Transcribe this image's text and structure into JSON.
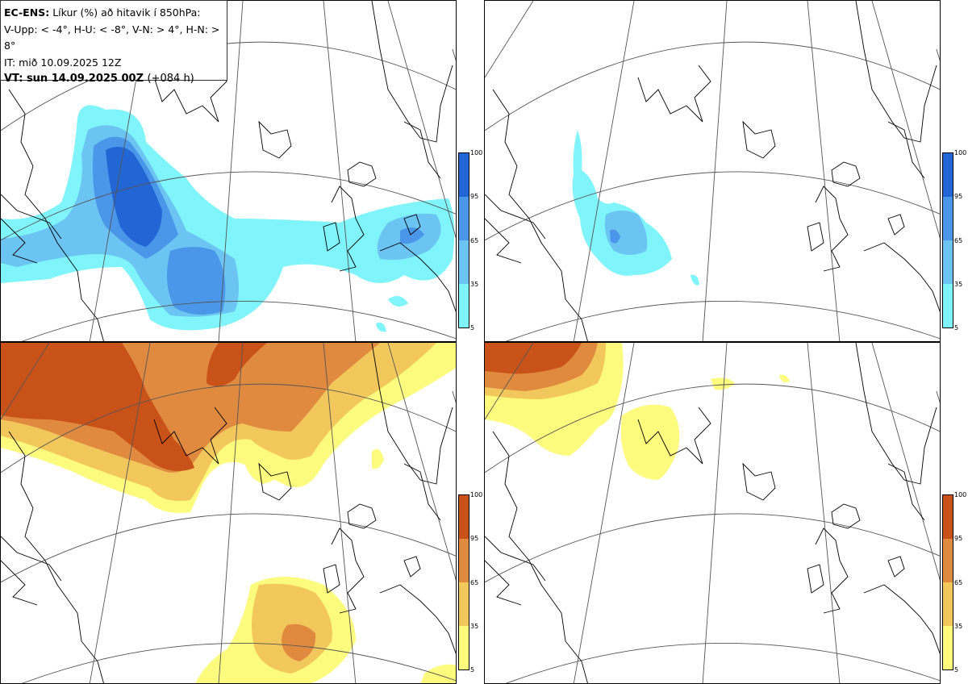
{
  "header": {
    "model": "EC-ENS:",
    "title": "Líkur (%) að hitavik í 850hPa:",
    "criteria": "V-Upp: < -4°, H-U: < -8°, V-N: > 4°, H-N: > 8°",
    "init_time": "IT: mið 10.09.2025 12Z",
    "valid_label": "VT: sun 14.09.2025 00Z",
    "lead_time": "(+084 h)"
  },
  "colorbars": {
    "cold": {
      "ticks": [
        "100",
        "95",
        "65",
        "35",
        "5"
      ],
      "colors": [
        "#2266d6",
        "#4a96e8",
        "#6cc4f2",
        "#7ff4fb"
      ]
    },
    "warm": {
      "ticks": [
        "100",
        "95",
        "65",
        "35",
        "5"
      ],
      "colors": [
        "#c95219",
        "#e08a40",
        "#f2c75b",
        "#fdfb7e"
      ]
    }
  },
  "panels": [
    {
      "id": "V-Upp",
      "thresholds": "< -4°"
    },
    {
      "id": "H-U",
      "thresholds": "< -8°"
    },
    {
      "id": "V-N",
      "thresholds": "> 4°"
    },
    {
      "id": "H-N",
      "thresholds": "> 8°"
    }
  ]
}
